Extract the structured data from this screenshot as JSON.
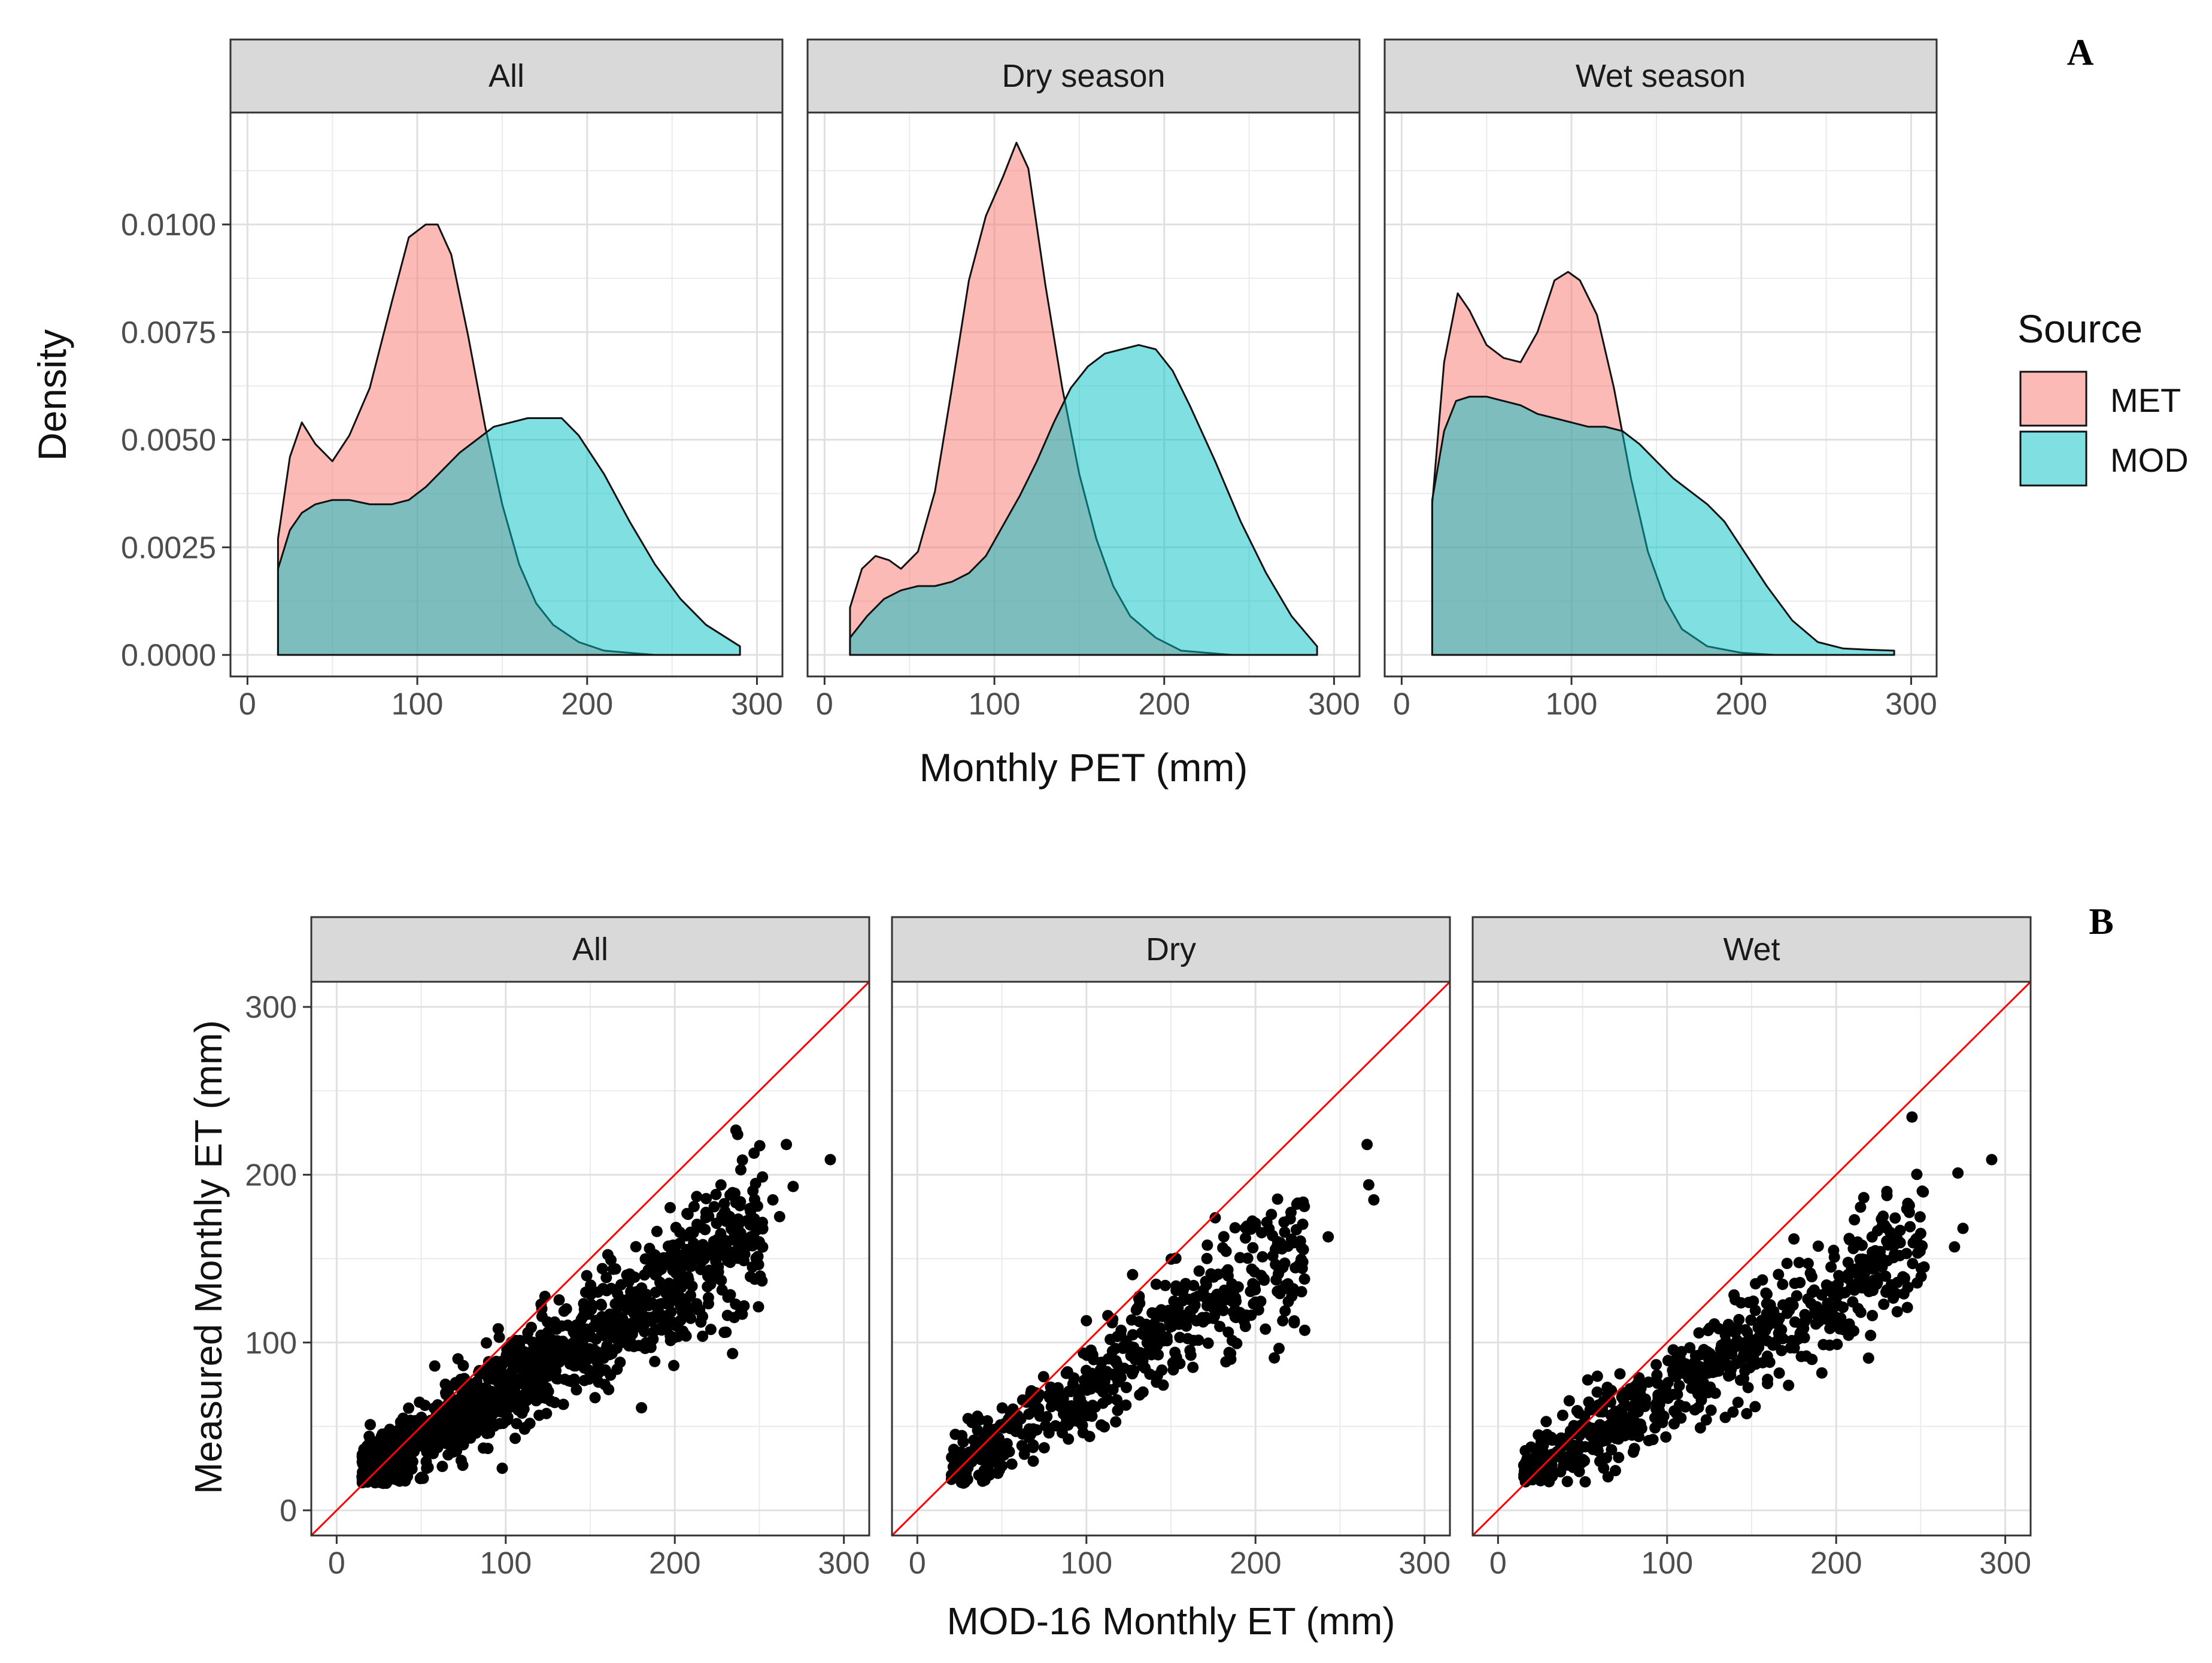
{
  "chart_data": [
    {
      "type": "area",
      "panel_label": "A",
      "xlabel": "Monthly PET (mm)",
      "ylabel": "Density",
      "xlim": [
        -10,
        315
      ],
      "ylim": [
        -0.0005,
        0.0126
      ],
      "xticks": [
        0,
        100,
        200,
        300
      ],
      "yticks": [
        0.0,
        0.0025,
        0.005,
        0.0075,
        0.01
      ],
      "ytick_labels": [
        "0.0000",
        "0.0025",
        "0.0050",
        "0.0075",
        "0.0100"
      ],
      "xtick_labels": [
        "0",
        "100",
        "200",
        "300"
      ],
      "grid": true,
      "legend": {
        "title": "Source",
        "position": "right",
        "entries": [
          {
            "name": "MET",
            "color": "#f8766d"
          },
          {
            "name": "MOD",
            "color": "#00bfc4"
          }
        ]
      },
      "facets": [
        {
          "strip": "All",
          "series": [
            {
              "name": "MET",
              "x": [
                18,
                25,
                32,
                40,
                50,
                60,
                72,
                85,
                95,
                105,
                112,
                120,
                130,
                140,
                150,
                160,
                170,
                180,
                195,
                210,
                225,
                240,
                255,
                270,
                290
              ],
              "y": [
                0.0027,
                0.0046,
                0.0054,
                0.0049,
                0.0045,
                0.0051,
                0.0062,
                0.0082,
                0.0097,
                0.01,
                0.01,
                0.0093,
                0.0074,
                0.0053,
                0.0035,
                0.0021,
                0.0012,
                0.0007,
                0.0003,
                0.0001,
                5e-05,
                0.0,
                0.0,
                0.0,
                0.0
              ]
            },
            {
              "name": "MOD",
              "x": [
                18,
                25,
                32,
                40,
                50,
                60,
                72,
                85,
                95,
                105,
                115,
                125,
                135,
                145,
                155,
                165,
                175,
                185,
                195,
                210,
                225,
                240,
                255,
                270,
                290
              ],
              "y": [
                0.002,
                0.0029,
                0.0033,
                0.0035,
                0.0036,
                0.0036,
                0.0035,
                0.0035,
                0.0036,
                0.0039,
                0.0043,
                0.0047,
                0.005,
                0.0053,
                0.0054,
                0.0055,
                0.0055,
                0.0055,
                0.0051,
                0.0042,
                0.0031,
                0.0021,
                0.0013,
                0.0007,
                0.0002
              ]
            }
          ]
        },
        {
          "strip": "Dry season",
          "series": [
            {
              "name": "MET",
              "x": [
                15,
                22,
                30,
                38,
                45,
                55,
                65,
                75,
                85,
                95,
                105,
                113,
                120,
                130,
                140,
                150,
                160,
                170,
                180,
                195,
                210,
                225,
                240,
                260,
                290
              ],
              "y": [
                0.0011,
                0.002,
                0.0023,
                0.0022,
                0.002,
                0.0024,
                0.0038,
                0.0062,
                0.0087,
                0.0102,
                0.0111,
                0.0119,
                0.0113,
                0.0086,
                0.0062,
                0.0042,
                0.0027,
                0.0016,
                0.0009,
                0.0004,
                0.0001,
                5e-05,
                0.0,
                0.0,
                0.0
              ]
            },
            {
              "name": "MOD",
              "x": [
                15,
                25,
                35,
                45,
                55,
                65,
                75,
                85,
                95,
                105,
                115,
                125,
                135,
                145,
                155,
                165,
                175,
                185,
                195,
                205,
                215,
                230,
                245,
                260,
                275,
                290
              ],
              "y": [
                0.0004,
                0.0009,
                0.0013,
                0.0015,
                0.0016,
                0.0016,
                0.0017,
                0.0019,
                0.0023,
                0.003,
                0.0037,
                0.0045,
                0.0054,
                0.0062,
                0.0067,
                0.007,
                0.0071,
                0.0072,
                0.0071,
                0.0066,
                0.0058,
                0.0045,
                0.0031,
                0.0019,
                0.0009,
                0.0002
              ]
            }
          ]
        },
        {
          "strip": "Wet season",
          "series": [
            {
              "name": "MET",
              "x": [
                18,
                25,
                33,
                40,
                50,
                60,
                70,
                80,
                90,
                98,
                105,
                115,
                125,
                135,
                145,
                155,
                165,
                180,
                200,
                220,
                240,
                260,
                280,
                290
              ],
              "y": [
                0.0035,
                0.0068,
                0.0084,
                0.008,
                0.0072,
                0.0069,
                0.0068,
                0.0075,
                0.0087,
                0.0089,
                0.0087,
                0.0079,
                0.0062,
                0.0041,
                0.0024,
                0.0013,
                0.0006,
                0.0002,
                5e-05,
                0.0,
                0.0,
                0.0,
                0.0,
                0.0
              ]
            },
            {
              "name": "MOD",
              "x": [
                18,
                25,
                32,
                40,
                50,
                60,
                70,
                80,
                90,
                100,
                110,
                120,
                130,
                140,
                150,
                160,
                170,
                180,
                190,
                200,
                215,
                230,
                245,
                260,
                275,
                290
              ],
              "y": [
                0.0036,
                0.0052,
                0.0059,
                0.006,
                0.006,
                0.0059,
                0.0058,
                0.0056,
                0.0055,
                0.0054,
                0.0053,
                0.0053,
                0.0052,
                0.0049,
                0.0045,
                0.0041,
                0.0038,
                0.0035,
                0.0031,
                0.0025,
                0.0016,
                0.0008,
                0.0003,
                0.00015,
                0.00012,
                0.0001
              ]
            }
          ]
        }
      ]
    },
    {
      "type": "scatter",
      "panel_label": "B",
      "xlabel": "MOD-16 Monthly ET (mm)",
      "ylabel": "Measured Monthly ET (mm)",
      "xlim": [
        -15,
        315
      ],
      "ylim": [
        -15,
        315
      ],
      "xticks": [
        0,
        100,
        200,
        300
      ],
      "yticks": [
        0,
        100,
        200,
        300
      ],
      "xtick_labels": [
        "0",
        "100",
        "200",
        "300"
      ],
      "ytick_labels": [
        "0",
        "100",
        "200",
        "300"
      ],
      "grid": true,
      "reference_line": {
        "slope": 1,
        "intercept": 0,
        "color": "#ff0000"
      },
      "facets": [
        {
          "strip": "All",
          "n_points": 1100,
          "x_range": [
            15,
            292
          ],
          "slope": 0.62,
          "intercept": 12,
          "noise": 15,
          "extra_points": [
            [
              292,
              209
            ],
            [
              266,
              218
            ],
            [
              270,
              193
            ],
            [
              258,
              185
            ],
            [
              262,
              175
            ],
            [
              250,
              160
            ],
            [
              58,
              86
            ]
          ]
        },
        {
          "strip": "Dry",
          "n_points": 520,
          "x_range": [
            20,
            270
          ],
          "slope": 0.63,
          "intercept": 12,
          "noise": 15,
          "extra_points": [
            [
              266,
              218
            ],
            [
              267,
              194
            ],
            [
              270,
              185
            ],
            [
              243,
              163
            ],
            [
              100,
              113
            ],
            [
              30,
              30
            ],
            [
              40,
              18
            ]
          ]
        },
        {
          "strip": "Wet",
          "n_points": 620,
          "x_range": [
            15,
            292
          ],
          "slope": 0.6,
          "intercept": 12,
          "noise": 14,
          "extra_points": [
            [
              292,
              209
            ],
            [
              272,
              201
            ],
            [
              275,
              168
            ],
            [
              250,
              165
            ],
            [
              252,
              145
            ],
            [
              270,
              157
            ],
            [
              230,
              190
            ]
          ]
        }
      ]
    }
  ]
}
